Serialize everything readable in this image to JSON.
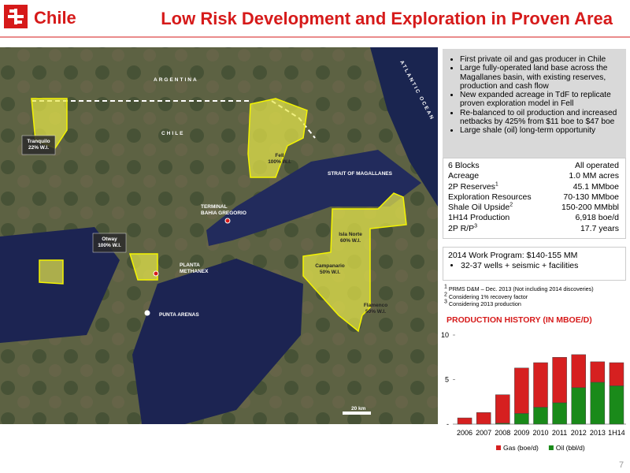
{
  "header": {
    "brand": "Chile",
    "title": "Low Risk Development and Exploration in Proven Area"
  },
  "map": {
    "regions": [
      "ARGENTINA",
      "CHILE",
      "STRAIT OF MAGALLANES",
      "ATLANTIC OCEAN"
    ],
    "blocks": [
      {
        "name": "Tranquilo",
        "share": "22% W.I."
      },
      {
        "name": "Fell",
        "share": "100% W.I."
      },
      {
        "name": "Otway",
        "share": "100% W.I."
      },
      {
        "name": "Isla Norte",
        "share": "60% W.I."
      },
      {
        "name": "Campanario",
        "share": "50% W.I."
      },
      {
        "name": "Flamenco",
        "share": "50% W.I."
      }
    ],
    "sites": [
      [
        "TERMINAL",
        "BAHIA GREGORIO"
      ],
      [
        "PLANTA",
        "METHANEX"
      ],
      [
        "PUNTA ARENAS"
      ]
    ],
    "scale": "20 km"
  },
  "highlights": [
    "First private oil and gas producer in Chile",
    "Large fully-operated land base across the Magallanes basin, with existing reserves, production and cash flow",
    "New expanded acreage in TdF to replicate proven exploration model in Fell",
    "Re-balanced to oil production and increased netbacks by 425% from $11 boe to $47 boe",
    "Large shale (oil) long-term opportunity"
  ],
  "facts": [
    {
      "label": "6 Blocks",
      "value": "All operated"
    },
    {
      "label": "Acreage",
      "value": "1.0 MM acres"
    },
    {
      "label": "2P Reserves",
      "sup": "1",
      "value": "45.1 MMboe"
    },
    {
      "label": "Exploration Resources",
      "value": "70-130 MMboe"
    },
    {
      "label": "Shale Oil Upside",
      "sup": "2",
      "value": "150-200 MMbbl"
    },
    {
      "label": "1H14 Production",
      "value": "6,918 boe/d"
    },
    {
      "label": "2P R/P",
      "sup": "3",
      "value": "17.7 years"
    }
  ],
  "work_program": {
    "title": "2014 Work Program: $140-155 MM",
    "items": [
      "32-37 wells + seismic + facilities"
    ]
  },
  "footnotes": [
    {
      "mark": "1",
      "text": "PRMS D&M – Dec. 2013 (Not including 2014 discoveries)"
    },
    {
      "mark": "2",
      "text": "Considering 1% recovery factor"
    },
    {
      "mark": "3",
      "text": "Considering 2013 production"
    }
  ],
  "chart_data": {
    "type": "stacked_bar",
    "title": "PRODUCTION HISTORY (IN MBOE/D)",
    "categories": [
      "2006",
      "2007",
      "2008",
      "2009",
      "2010",
      "2011",
      "2012",
      "2013",
      "1H14"
    ],
    "series": [
      {
        "name": "Gas (boe/d)",
        "color": "#d62020",
        "values": [
          0.7,
          1.3,
          3.2,
          5.1,
          5.0,
          5.1,
          3.7,
          2.3,
          2.6
        ]
      },
      {
        "name": "Oil (bbl/d)",
        "color": "#1a8a1a",
        "values": [
          0,
          0,
          0.1,
          1.2,
          1.9,
          2.4,
          4.1,
          4.7,
          4.3
        ]
      }
    ],
    "ylim": [
      0,
      10
    ],
    "yticks": [
      {
        "value": 0,
        "label": "-"
      },
      5,
      10
    ],
    "legend": "bottom"
  },
  "page_number": "7"
}
